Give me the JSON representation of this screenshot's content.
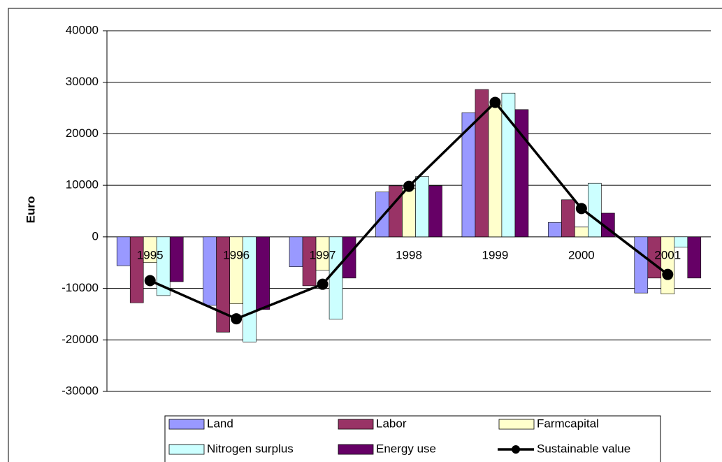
{
  "chart_data": {
    "type": "bar",
    "ylabel": "Euro",
    "categories": [
      "1995",
      "1996",
      "1997",
      "1998",
      "1999",
      "2000",
      "2001"
    ],
    "series": [
      {
        "name": "Land",
        "color": "#9999ff",
        "values": [
          -5600,
          -13300,
          -5800,
          8700,
          24100,
          2800,
          -10900
        ]
      },
      {
        "name": "Labor",
        "color": "#993366",
        "values": [
          -12800,
          -18500,
          -9500,
          9900,
          28600,
          7200,
          -8000
        ]
      },
      {
        "name": "Farmcapital",
        "color": "#ffffcc",
        "values": [
          -5000,
          -13000,
          -6500,
          9400,
          25600,
          1900,
          -11100
        ]
      },
      {
        "name": "Nitrogen surplus",
        "color": "#ccffff",
        "values": [
          -11400,
          -20400,
          -16000,
          11700,
          27900,
          10400,
          -2000
        ]
      },
      {
        "name": "Energy use",
        "color": "#660066",
        "values": [
          -8700,
          -14100,
          -8000,
          9900,
          24700,
          4600,
          -8000
        ]
      },
      {
        "name": "Sustainable value",
        "color": "#000000",
        "type": "line",
        "values": [
          -8500,
          -15900,
          -9200,
          9800,
          26100,
          5500,
          -7300
        ]
      }
    ],
    "ylim": [
      -30000,
      40000
    ],
    "yticks": [
      -30000,
      -20000,
      -10000,
      0,
      10000,
      20000,
      30000,
      40000
    ],
    "grid": true,
    "legend": "bottom"
  }
}
